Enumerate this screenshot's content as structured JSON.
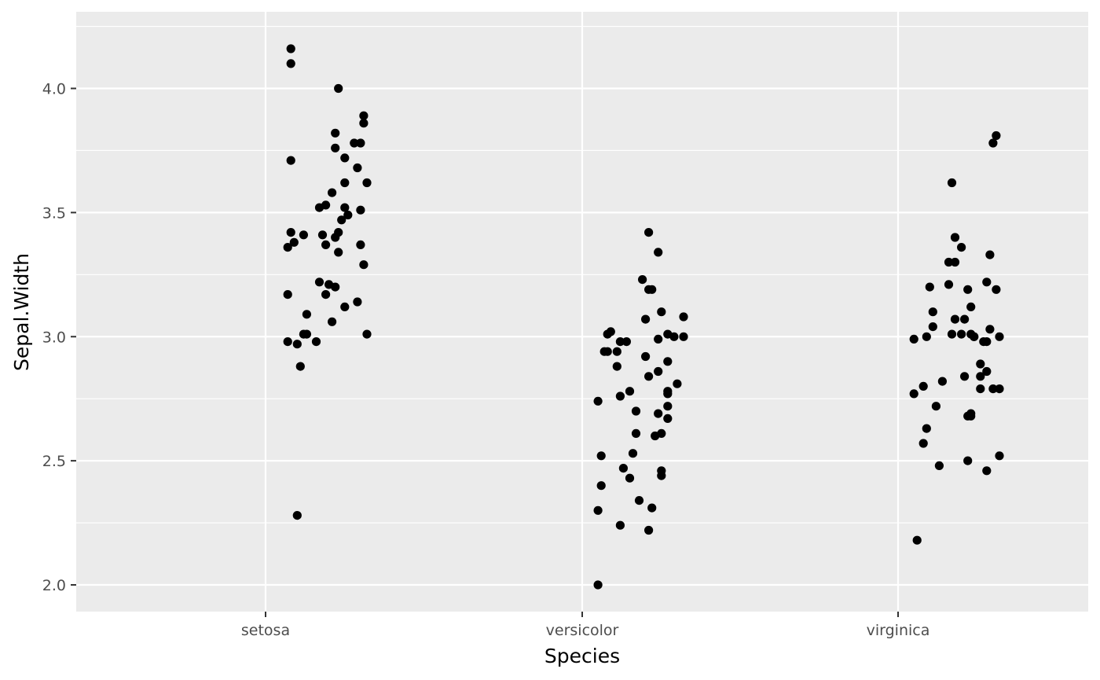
{
  "chart_data": {
    "type": "scatter",
    "title": "",
    "xlabel": "Species",
    "ylabel": "Sepal.Width",
    "categories": [
      "setosa",
      "versicolor",
      "virginica"
    ],
    "ylim": [
      1.89,
      4.32
    ],
    "yticks": [
      2.0,
      2.5,
      3.0,
      3.5,
      4.0
    ],
    "ytick_labels": [
      "2.0",
      "2.5",
      "3.0",
      "3.5",
      "4.0"
    ],
    "jitter_note_free": true,
    "background": "#ebebeb",
    "grid": true,
    "point_color": "#000000",
    "series": [
      {
        "category": "setosa",
        "points": [
          [
            0.08,
            4.16
          ],
          [
            0.08,
            4.1
          ],
          [
            0.23,
            4.0
          ],
          [
            0.31,
            3.89
          ],
          [
            0.31,
            3.86
          ],
          [
            0.22,
            3.82
          ],
          [
            0.3,
            3.78
          ],
          [
            0.28,
            3.78
          ],
          [
            0.22,
            3.76
          ],
          [
            0.25,
            3.72
          ],
          [
            0.08,
            3.71
          ],
          [
            0.29,
            3.68
          ],
          [
            0.32,
            3.62
          ],
          [
            0.25,
            3.62
          ],
          [
            0.21,
            3.58
          ],
          [
            0.19,
            3.53
          ],
          [
            0.17,
            3.52
          ],
          [
            0.25,
            3.52
          ],
          [
            0.3,
            3.51
          ],
          [
            0.26,
            3.49
          ],
          [
            0.24,
            3.47
          ],
          [
            0.08,
            3.42
          ],
          [
            0.23,
            3.42
          ],
          [
            0.12,
            3.41
          ],
          [
            0.18,
            3.41
          ],
          [
            0.22,
            3.4
          ],
          [
            0.09,
            3.38
          ],
          [
            0.19,
            3.37
          ],
          [
            0.3,
            3.37
          ],
          [
            0.07,
            3.36
          ],
          [
            0.23,
            3.34
          ],
          [
            0.31,
            3.29
          ],
          [
            0.17,
            3.22
          ],
          [
            0.2,
            3.21
          ],
          [
            0.22,
            3.2
          ],
          [
            0.07,
            3.17
          ],
          [
            0.19,
            3.17
          ],
          [
            0.29,
            3.14
          ],
          [
            0.25,
            3.12
          ],
          [
            0.13,
            3.09
          ],
          [
            0.12,
            3.01
          ],
          [
            0.13,
            3.01
          ],
          [
            0.32,
            3.01
          ],
          [
            0.21,
            3.06
          ],
          [
            0.16,
            2.98
          ],
          [
            0.07,
            2.98
          ],
          [
            0.1,
            2.97
          ],
          [
            0.11,
            2.88
          ],
          [
            0.1,
            2.28
          ]
        ]
      },
      {
        "category": "versicolor",
        "points": [
          [
            0.21,
            3.42
          ],
          [
            0.24,
            3.34
          ],
          [
            0.19,
            3.23
          ],
          [
            0.22,
            3.19
          ],
          [
            0.21,
            3.19
          ],
          [
            0.25,
            3.1
          ],
          [
            0.32,
            3.08
          ],
          [
            0.2,
            3.07
          ],
          [
            0.09,
            3.02
          ],
          [
            0.08,
            3.01
          ],
          [
            0.27,
            3.01
          ],
          [
            0.32,
            3.0
          ],
          [
            0.29,
            3.0
          ],
          [
            0.24,
            2.99
          ],
          [
            0.12,
            2.98
          ],
          [
            0.14,
            2.98
          ],
          [
            0.08,
            2.94
          ],
          [
            0.07,
            2.94
          ],
          [
            0.11,
            2.94
          ],
          [
            0.27,
            2.9
          ],
          [
            0.2,
            2.92
          ],
          [
            0.11,
            2.88
          ],
          [
            0.24,
            2.86
          ],
          [
            0.21,
            2.84
          ],
          [
            0.3,
            2.81
          ],
          [
            0.15,
            2.78
          ],
          [
            0.27,
            2.78
          ],
          [
            0.27,
            2.77
          ],
          [
            0.12,
            2.76
          ],
          [
            0.05,
            2.74
          ],
          [
            0.27,
            2.72
          ],
          [
            0.17,
            2.7
          ],
          [
            0.24,
            2.69
          ],
          [
            0.27,
            2.67
          ],
          [
            0.17,
            2.61
          ],
          [
            0.25,
            2.61
          ],
          [
            0.23,
            2.6
          ],
          [
            0.16,
            2.53
          ],
          [
            0.06,
            2.52
          ],
          [
            0.13,
            2.47
          ],
          [
            0.25,
            2.46
          ],
          [
            0.25,
            2.44
          ],
          [
            0.15,
            2.43
          ],
          [
            0.06,
            2.4
          ],
          [
            0.18,
            2.34
          ],
          [
            0.22,
            2.31
          ],
          [
            0.05,
            2.3
          ],
          [
            0.12,
            2.24
          ],
          [
            0.21,
            2.22
          ],
          [
            0.05,
            2.0
          ]
        ]
      },
      {
        "category": "virginica",
        "points": [
          [
            0.31,
            3.81
          ],
          [
            0.3,
            3.78
          ],
          [
            0.17,
            3.62
          ],
          [
            0.18,
            3.4
          ],
          [
            0.2,
            3.36
          ],
          [
            0.29,
            3.33
          ],
          [
            0.16,
            3.3
          ],
          [
            0.18,
            3.3
          ],
          [
            0.16,
            3.21
          ],
          [
            0.28,
            3.22
          ],
          [
            0.1,
            3.2
          ],
          [
            0.22,
            3.19
          ],
          [
            0.31,
            3.19
          ],
          [
            0.23,
            3.12
          ],
          [
            0.11,
            3.1
          ],
          [
            0.18,
            3.07
          ],
          [
            0.21,
            3.07
          ],
          [
            0.11,
            3.04
          ],
          [
            0.29,
            3.03
          ],
          [
            0.17,
            3.01
          ],
          [
            0.2,
            3.01
          ],
          [
            0.23,
            3.01
          ],
          [
            0.24,
            3.0
          ],
          [
            0.24,
            3.0
          ],
          [
            0.09,
            3.0
          ],
          [
            0.32,
            3.0
          ],
          [
            0.05,
            2.99
          ],
          [
            0.27,
            2.98
          ],
          [
            0.28,
            2.98
          ],
          [
            0.26,
            2.89
          ],
          [
            0.28,
            2.86
          ],
          [
            0.26,
            2.84
          ],
          [
            0.21,
            2.84
          ],
          [
            0.14,
            2.82
          ],
          [
            0.08,
            2.8
          ],
          [
            0.26,
            2.79
          ],
          [
            0.3,
            2.79
          ],
          [
            0.32,
            2.79
          ],
          [
            0.05,
            2.77
          ],
          [
            0.12,
            2.72
          ],
          [
            0.23,
            2.69
          ],
          [
            0.22,
            2.68
          ],
          [
            0.23,
            2.68
          ],
          [
            0.09,
            2.63
          ],
          [
            0.08,
            2.57
          ],
          [
            0.32,
            2.52
          ],
          [
            0.22,
            2.5
          ],
          [
            0.13,
            2.48
          ],
          [
            0.28,
            2.46
          ],
          [
            0.06,
            2.18
          ]
        ]
      }
    ]
  }
}
